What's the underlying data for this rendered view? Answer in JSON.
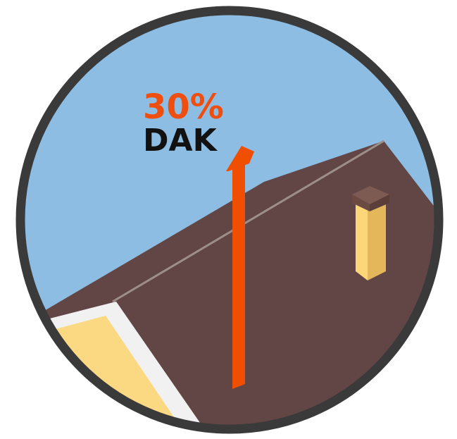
{
  "percentage": "30%",
  "caption": "DAK",
  "indicator_level_percent": 30,
  "colors": {
    "sky": "#8dbde3",
    "roof": "#624646",
    "ridge_line": "#9e8e88",
    "frame": "#3a3a3a",
    "arrow": "#f04e00",
    "percent_text": "#ee4f10",
    "caption_text": "#111111",
    "chimney_front": "#fcd77a",
    "chimney_side": "#e3b75a",
    "chimney_cap": "#7d5a52",
    "window_glass": "#fbd983",
    "window_frame": "#f1f1f1"
  },
  "icons": [
    "roof-illustration",
    "chimney-icon",
    "up-arrow-icon",
    "dormer-window"
  ]
}
